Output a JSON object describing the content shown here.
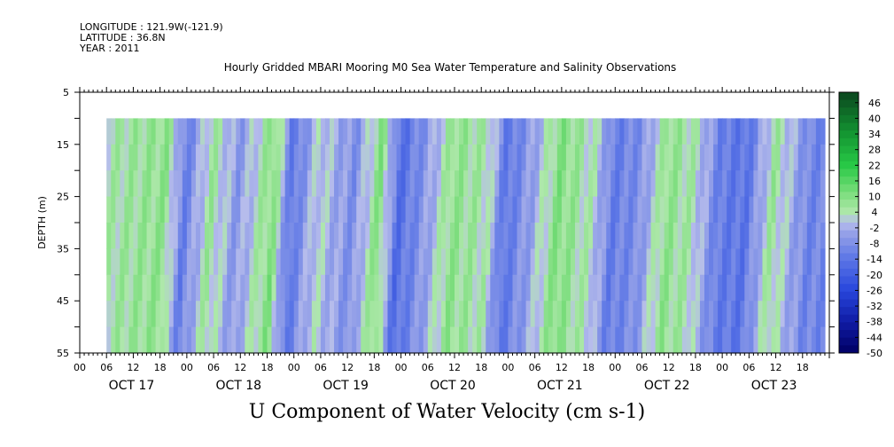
{
  "header": {
    "longitude": "LONGITUDE : 121.9W(-121.9)",
    "latitude": "LATITUDE : 36.8N",
    "year": "YEAR : 2011"
  },
  "chart_data": {
    "type": "heatmap",
    "title": "Hourly Gridded MBARI Mooring M0 Sea Water Temperature and Salinity Observations",
    "xlabel": "U Component of Water Velocity (cm s-1)",
    "ylabel": "DEPTH (m)",
    "y_ticks": [
      5,
      15,
      25,
      35,
      45,
      55
    ],
    "y_range": [
      5,
      55
    ],
    "y_reversed": true,
    "data_depth_range": [
      10,
      55
    ],
    "hour_tick_labels": [
      "00",
      "06",
      "12",
      "18",
      "00",
      "06",
      "12",
      "18",
      "00",
      "06",
      "12",
      "18",
      "00",
      "06",
      "12",
      "18",
      "00",
      "06",
      "12",
      "18",
      "00",
      "06",
      "12",
      "18",
      "00",
      "06",
      "12",
      "18"
    ],
    "date_labels": [
      "OCT 17",
      "OCT 18",
      "OCT 19",
      "OCT 20",
      "OCT 21",
      "OCT 22",
      "OCT 23"
    ],
    "x_start": "OCT 17 00:00",
    "data_start": "OCT 17 06:00",
    "data_end": "OCT 23 23:00",
    "colorbar": {
      "labels": [
        46,
        40,
        34,
        28,
        22,
        16,
        10,
        4,
        -2,
        -8,
        -14,
        -20,
        -26,
        -32,
        -38,
        -44,
        -50
      ],
      "range": [
        -50,
        50
      ]
    },
    "dominant_values_timeline": [
      {
        "time": "OCT 17 06",
        "value": 4
      },
      {
        "time": "OCT 17 12",
        "value": 6
      },
      {
        "time": "OCT 17 20",
        "value": 8
      },
      {
        "time": "OCT 18 00",
        "value": -12
      },
      {
        "time": "OCT 18 06",
        "value": 6
      },
      {
        "time": "OCT 18 12",
        "value": -6
      },
      {
        "time": "OCT 18 20",
        "value": 10
      },
      {
        "time": "OCT 19 00",
        "value": -14
      },
      {
        "time": "OCT 19 06",
        "value": 2
      },
      {
        "time": "OCT 19 14",
        "value": -8
      },
      {
        "time": "OCT 19 20",
        "value": 10
      },
      {
        "time": "OCT 20 00",
        "value": -16
      },
      {
        "time": "OCT 20 06",
        "value": -6
      },
      {
        "time": "OCT 20 12",
        "value": 8
      },
      {
        "time": "OCT 20 20",
        "value": 4
      },
      {
        "time": "OCT 21 00",
        "value": -14
      },
      {
        "time": "OCT 21 06",
        "value": -4
      },
      {
        "time": "OCT 21 12",
        "value": 10
      },
      {
        "time": "OCT 21 20",
        "value": 2
      },
      {
        "time": "OCT 22 00",
        "value": -12
      },
      {
        "time": "OCT 22 06",
        "value": -8
      },
      {
        "time": "OCT 22 12",
        "value": 8
      },
      {
        "time": "OCT 22 18",
        "value": 4
      },
      {
        "time": "OCT 23 00",
        "value": -12
      },
      {
        "time": "OCT 23 06",
        "value": -14
      },
      {
        "time": "OCT 23 12",
        "value": 6
      },
      {
        "time": "OCT 23 20",
        "value": -10
      }
    ]
  }
}
